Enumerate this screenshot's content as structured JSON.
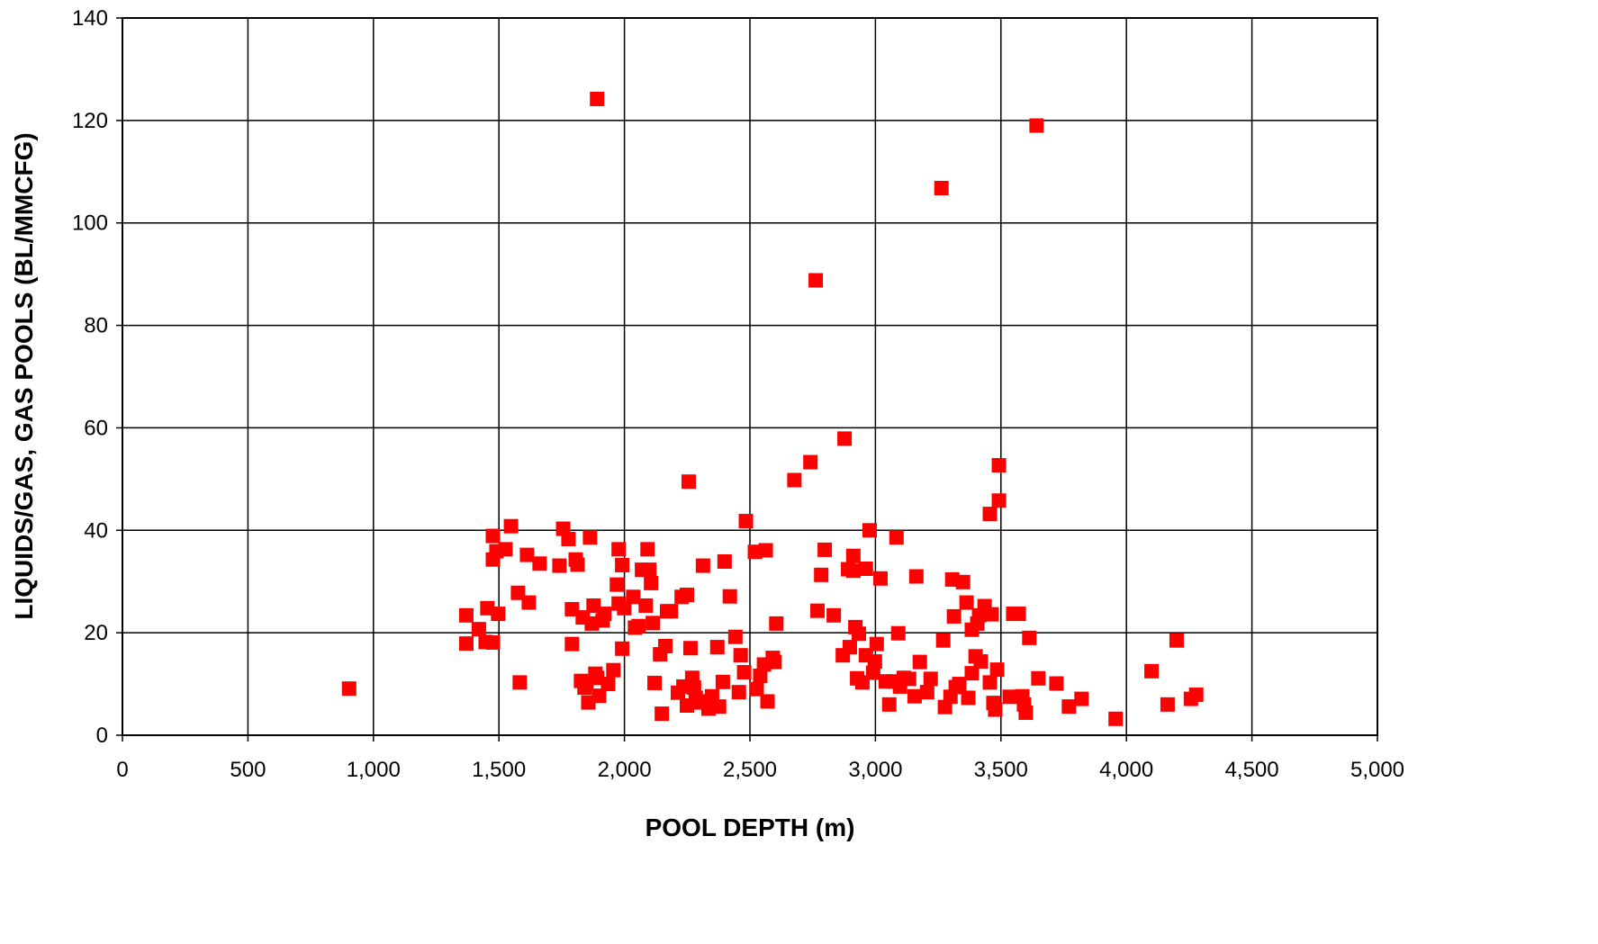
{
  "chart_data": {
    "type": "scatter",
    "xlabel": "POOL DEPTH (m)",
    "ylabel": "LIQUIDS/GAS, GAS POOLS (BL/MMCFG)",
    "xlim": [
      0,
      5000
    ],
    "ylim": [
      0,
      140
    ],
    "x_ticks": [
      0,
      500,
      1000,
      1500,
      2000,
      2500,
      3000,
      3500,
      4000,
      4500,
      5000
    ],
    "x_tick_labels": [
      "0",
      "500",
      "1,000",
      "1,500",
      "2,000",
      "2,500",
      "3,000",
      "3,500",
      "4,000",
      "4,500",
      "5,000"
    ],
    "y_ticks": [
      0,
      20,
      40,
      60,
      80,
      100,
      120,
      140
    ],
    "y_tick_labels": [
      "0",
      "20",
      "40",
      "60",
      "80",
      "100",
      "120",
      "140"
    ],
    "grid": true,
    "marker": "square",
    "marker_color": "#ff0000",
    "points": [
      [
        903,
        9.1
      ],
      [
        1370,
        23.4
      ],
      [
        1370,
        17.9
      ],
      [
        1420,
        20.7
      ],
      [
        1447,
        18.2
      ],
      [
        1454,
        24.8
      ],
      [
        1476,
        38.9
      ],
      [
        1476,
        34.3
      ],
      [
        1476,
        18.1
      ],
      [
        1490,
        35.9
      ],
      [
        1497,
        23.7
      ],
      [
        1526,
        36.3
      ],
      [
        1548,
        40.8
      ],
      [
        1576,
        27.8
      ],
      [
        1583,
        10.3
      ],
      [
        1612,
        35.2
      ],
      [
        1619,
        25.9
      ],
      [
        1662,
        33.5
      ],
      [
        1741,
        33.1
      ],
      [
        1756,
        40.3
      ],
      [
        1777,
        38.3
      ],
      [
        1791,
        24.6
      ],
      [
        1791,
        17.8
      ],
      [
        1806,
        34.3
      ],
      [
        1813,
        33.3
      ],
      [
        1827,
        10.6
      ],
      [
        1834,
        23.0
      ],
      [
        1841,
        9.3
      ],
      [
        1848,
        10.2
      ],
      [
        1856,
        6.4
      ],
      [
        1863,
        38.6
      ],
      [
        1870,
        21.8
      ],
      [
        1877,
        25.3
      ],
      [
        1884,
        12.0
      ],
      [
        1891,
        124.2
      ],
      [
        1891,
        11.2
      ],
      [
        1899,
        7.7
      ],
      [
        1913,
        22.4
      ],
      [
        1920,
        23.7
      ],
      [
        1935,
        10.0
      ],
      [
        1956,
        12.7
      ],
      [
        1970,
        29.4
      ],
      [
        1977,
        25.7
      ],
      [
        1977,
        36.3
      ],
      [
        1991,
        33.2
      ],
      [
        1991,
        16.9
      ],
      [
        1999,
        24.8
      ],
      [
        2035,
        27.0
      ],
      [
        2042,
        21.0
      ],
      [
        2056,
        21.3
      ],
      [
        2070,
        32.3
      ],
      [
        2085,
        25.3
      ],
      [
        2092,
        36.3
      ],
      [
        2099,
        32.3
      ],
      [
        2106,
        29.7
      ],
      [
        2113,
        21.9
      ],
      [
        2120,
        10.2
      ],
      [
        2142,
        15.8
      ],
      [
        2149,
        4.2
      ],
      [
        2163,
        17.4
      ],
      [
        2170,
        24.2
      ],
      [
        2185,
        24.2
      ],
      [
        2213,
        8.3
      ],
      [
        2228,
        27.0
      ],
      [
        2235,
        9.5
      ],
      [
        2249,
        27.4
      ],
      [
        2249,
        5.8
      ],
      [
        2256,
        49.5
      ],
      [
        2263,
        17.0
      ],
      [
        2270,
        11.2
      ],
      [
        2277,
        9.3
      ],
      [
        2284,
        7.3
      ],
      [
        2299,
        6.4
      ],
      [
        2313,
        33.1
      ],
      [
        2320,
        6.6
      ],
      [
        2335,
        5.2
      ],
      [
        2349,
        7.6
      ],
      [
        2370,
        17.2
      ],
      [
        2377,
        5.6
      ],
      [
        2392,
        10.4
      ],
      [
        2399,
        33.9
      ],
      [
        2420,
        27.1
      ],
      [
        2442,
        19.2
      ],
      [
        2456,
        8.4
      ],
      [
        2463,
        15.6
      ],
      [
        2477,
        12.3
      ],
      [
        2484,
        41.8
      ],
      [
        2520,
        35.8
      ],
      [
        2527,
        9.0
      ],
      [
        2541,
        11.6
      ],
      [
        2556,
        13.8
      ],
      [
        2563,
        36.1
      ],
      [
        2570,
        6.6
      ],
      [
        2591,
        15.1
      ],
      [
        2598,
        14.3
      ],
      [
        2605,
        21.8
      ],
      [
        2677,
        49.8
      ],
      [
        2741,
        53.3
      ],
      [
        2762,
        88.8
      ],
      [
        2769,
        24.3
      ],
      [
        2784,
        31.3
      ],
      [
        2798,
        36.2
      ],
      [
        2834,
        23.4
      ],
      [
        2870,
        15.6
      ],
      [
        2877,
        57.9
      ],
      [
        2891,
        32.4
      ],
      [
        2898,
        17.2
      ],
      [
        2912,
        32.1
      ],
      [
        2912,
        35.0
      ],
      [
        2920,
        21.1
      ],
      [
        2927,
        11.1
      ],
      [
        2934,
        19.8
      ],
      [
        2948,
        10.3
      ],
      [
        2962,
        32.5
      ],
      [
        2962,
        15.6
      ],
      [
        2977,
        40.0
      ],
      [
        2991,
        12.2
      ],
      [
        2998,
        14.4
      ],
      [
        3005,
        17.8
      ],
      [
        3020,
        30.6
      ],
      [
        3041,
        10.5
      ],
      [
        3055,
        6.0
      ],
      [
        3070,
        10.5
      ],
      [
        3084,
        38.6
      ],
      [
        3091,
        19.9
      ],
      [
        3098,
        9.5
      ],
      [
        3113,
        11.2
      ],
      [
        3134,
        11.0
      ],
      [
        3156,
        7.6
      ],
      [
        3163,
        31.0
      ],
      [
        3177,
        14.3
      ],
      [
        3206,
        8.4
      ],
      [
        3220,
        11.0
      ],
      [
        3263,
        106.8
      ],
      [
        3270,
        18.5
      ],
      [
        3277,
        5.5
      ],
      [
        3299,
        7.5
      ],
      [
        3306,
        30.4
      ],
      [
        3313,
        23.2
      ],
      [
        3320,
        9.4
      ],
      [
        3334,
        10.0
      ],
      [
        3349,
        29.9
      ],
      [
        3363,
        25.9
      ],
      [
        3370,
        7.3
      ],
      [
        3384,
        12.1
      ],
      [
        3384,
        20.6
      ],
      [
        3399,
        15.4
      ],
      [
        3406,
        21.8
      ],
      [
        3413,
        23.4
      ],
      [
        3420,
        14.4
      ],
      [
        3435,
        25.2
      ],
      [
        3456,
        43.2
      ],
      [
        3456,
        10.3
      ],
      [
        3463,
        23.6
      ],
      [
        3470,
        6.3
      ],
      [
        3477,
        5.0
      ],
      [
        3485,
        12.8
      ],
      [
        3492,
        45.8
      ],
      [
        3492,
        52.7
      ],
      [
        3535,
        7.5
      ],
      [
        3549,
        23.7
      ],
      [
        3571,
        23.7
      ],
      [
        3585,
        7.6
      ],
      [
        3592,
        6.0
      ],
      [
        3599,
        4.4
      ],
      [
        3613,
        19.0
      ],
      [
        3642,
        119.0
      ],
      [
        3649,
        11.1
      ],
      [
        3721,
        10.1
      ],
      [
        3771,
        5.6
      ],
      [
        3821,
        7.1
      ],
      [
        3957,
        3.2
      ],
      [
        4100,
        12.5
      ],
      [
        4164,
        6.0
      ],
      [
        4200,
        18.5
      ],
      [
        4257,
        7.1
      ],
      [
        4278,
        7.9
      ]
    ]
  }
}
